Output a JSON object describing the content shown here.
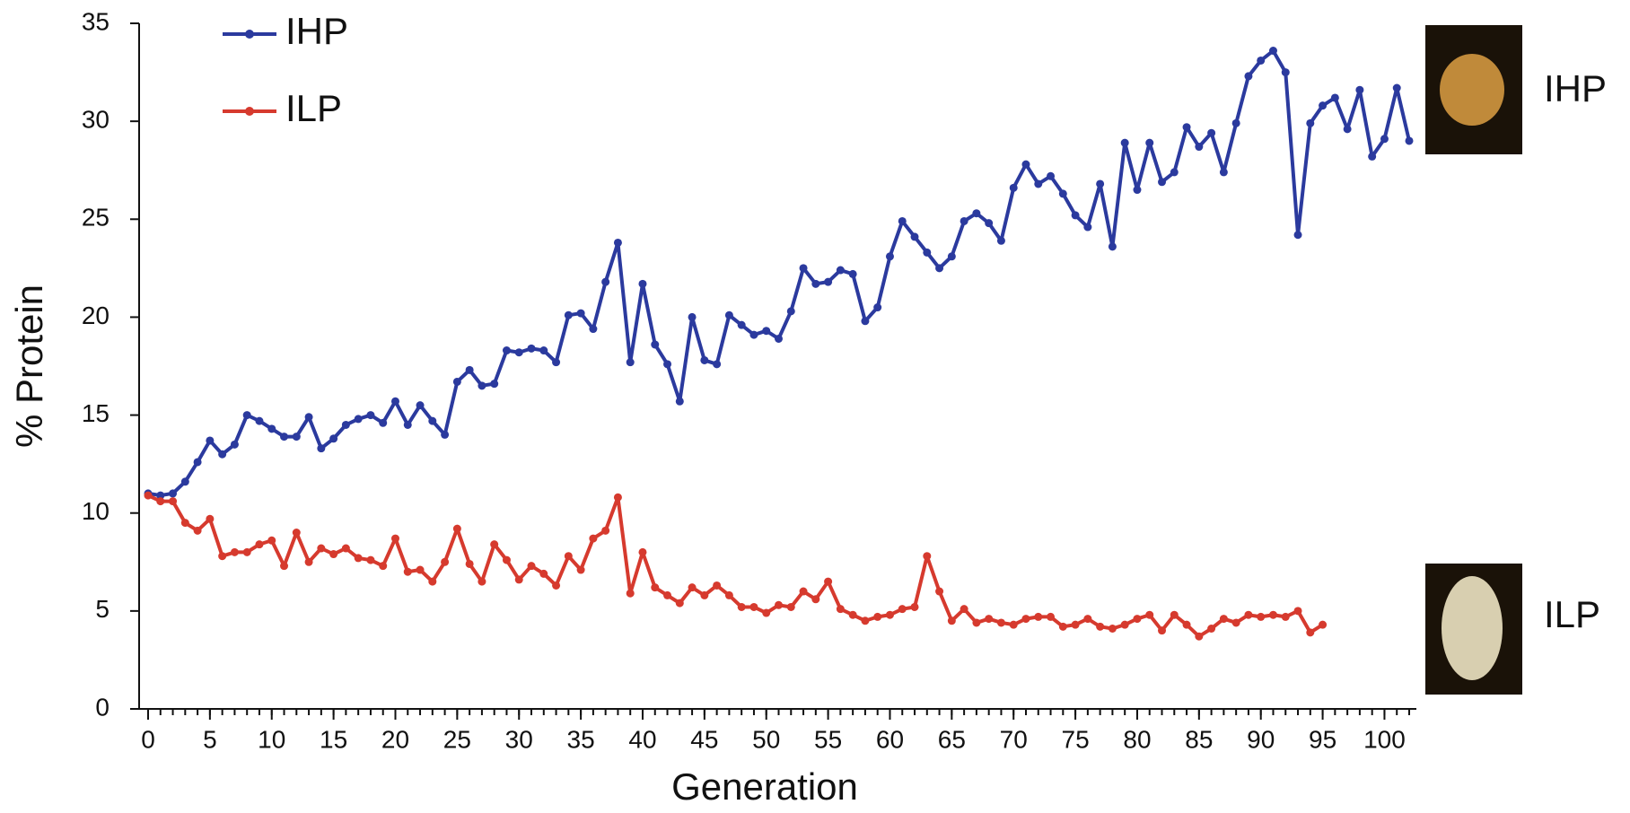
{
  "chart_data": {
    "type": "line",
    "x_label": "Generation",
    "y_label": "% Protein",
    "x": [
      0,
      1,
      2,
      3,
      4,
      5,
      6,
      7,
      8,
      9,
      10,
      11,
      12,
      13,
      14,
      15,
      16,
      17,
      18,
      19,
      20,
      21,
      22,
      23,
      24,
      25,
      26,
      27,
      28,
      29,
      30,
      31,
      32,
      33,
      34,
      35,
      36,
      37,
      38,
      39,
      40,
      41,
      42,
      43,
      44,
      45,
      46,
      47,
      48,
      49,
      50,
      51,
      52,
      53,
      54,
      55,
      56,
      57,
      58,
      59,
      60,
      61,
      62,
      63,
      64,
      65,
      66,
      67,
      68,
      69,
      70,
      71,
      72,
      73,
      74,
      75,
      76,
      77,
      78,
      79,
      80,
      81,
      82,
      83,
      84,
      85,
      86,
      87,
      88,
      89,
      90,
      91,
      92,
      93,
      94,
      95,
      96,
      97,
      98,
      99,
      100,
      101,
      102
    ],
    "series": [
      {
        "name": "IHP",
        "color": "#2b3a9e",
        "values": [
          11,
          10.9,
          11,
          11.6,
          12.6,
          13.7,
          13,
          13.5,
          15,
          14.7,
          14.3,
          13.9,
          13.9,
          14.9,
          13.3,
          13.8,
          14.5,
          14.8,
          15,
          14.6,
          15.7,
          14.5,
          15.5,
          14.7,
          14,
          16.7,
          17.3,
          16.5,
          16.6,
          18.3,
          18.2,
          18.4,
          18.3,
          17.7,
          20.1,
          20.2,
          19.4,
          21.8,
          23.8,
          17.7,
          21.7,
          18.6,
          17.6,
          15.7,
          20,
          17.8,
          17.6,
          20.1,
          19.6,
          19.1,
          19.3,
          18.9,
          20.3,
          22.5,
          21.7,
          21.8,
          22.4,
          22.2,
          19.8,
          20.5,
          23.1,
          24.9,
          24.1,
          23.3,
          22.5,
          23.1,
          24.9,
          25.3,
          24.8,
          23.9,
          26.6,
          27.8,
          26.8,
          27.2,
          26.3,
          25.2,
          24.6,
          26.8,
          23.6,
          28.9,
          26.5,
          28.9,
          26.9,
          27.4,
          29.7,
          28.7,
          29.4,
          27.4,
          29.9,
          32.3,
          33.1,
          33.6,
          32.5,
          24.2,
          29.9,
          30.8,
          31.2,
          29.6,
          31.6,
          28.2,
          29.1,
          31.7,
          29
        ]
      },
      {
        "name": "ILP",
        "color": "#d63a2e",
        "values": [
          10.9,
          10.6,
          10.6,
          9.5,
          9.1,
          9.7,
          7.8,
          8,
          8,
          8.4,
          8.6,
          7.3,
          9,
          7.5,
          8.2,
          7.9,
          8.2,
          7.7,
          7.6,
          7.3,
          8.7,
          7,
          7.1,
          6.5,
          7.5,
          9.2,
          7.4,
          6.5,
          8.4,
          7.6,
          6.6,
          7.3,
          6.9,
          6.3,
          7.8,
          7.1,
          8.7,
          9.1,
          10.8,
          5.9,
          8,
          6.2,
          5.8,
          5.4,
          6.2,
          5.8,
          6.3,
          5.8,
          5.2,
          5.2,
          4.9,
          5.3,
          5.2,
          6,
          5.6,
          6.5,
          5.1,
          4.8,
          4.5,
          4.7,
          4.8,
          5.1,
          5.2,
          7.8,
          6,
          4.5,
          5.1,
          4.4,
          4.6,
          4.4,
          4.3,
          4.6,
          4.7,
          4.7,
          4.2,
          4.3,
          4.6,
          4.2,
          4.1,
          4.3,
          4.6,
          4.8,
          4,
          4.8,
          4.3,
          3.7,
          4.1,
          4.6,
          4.4,
          4.8,
          4.7,
          4.8,
          4.7,
          5,
          3.9,
          4.3,
          null,
          null,
          null,
          null,
          null,
          null,
          null
        ]
      }
    ],
    "xlim": [
      0,
      102
    ],
    "xticks": [
      0,
      5,
      10,
      15,
      20,
      25,
      30,
      35,
      40,
      45,
      50,
      55,
      60,
      65,
      70,
      75,
      80,
      85,
      90,
      95,
      100
    ],
    "ylim": [
      0,
      35
    ],
    "yticks": [
      0,
      5,
      10,
      15,
      20,
      25,
      30,
      35
    ],
    "legend": "upper left",
    "annotations": [
      "IHP",
      "ILP"
    ]
  }
}
